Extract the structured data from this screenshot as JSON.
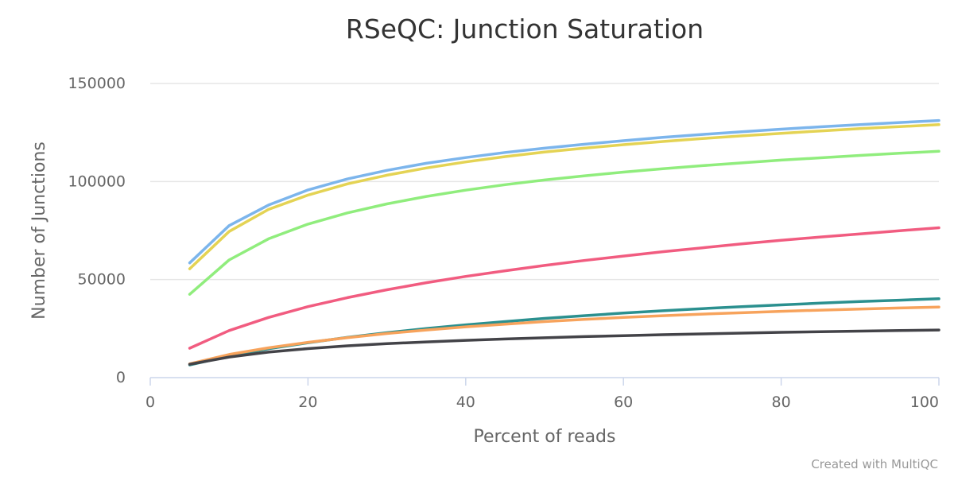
{
  "chart_data": {
    "type": "line",
    "title": "RSeQC: Junction Saturation",
    "xlabel": "Percent of reads",
    "ylabel": "Number of Junctions",
    "xlim": [
      0,
      100
    ],
    "ylim": [
      0,
      150000
    ],
    "x_ticks": [
      "0",
      "20",
      "40",
      "60",
      "80",
      "100"
    ],
    "y_ticks": [
      "0",
      "50000",
      "100000",
      "150000"
    ],
    "grid": true,
    "x": [
      5,
      10,
      15,
      20,
      25,
      30,
      35,
      40,
      45,
      50,
      55,
      60,
      65,
      70,
      75,
      80,
      85,
      90,
      95,
      100
    ],
    "series": [
      {
        "color": "#7cb5ec",
        "values": [
          58500,
          77500,
          88000,
          95700,
          101300,
          105700,
          109300,
          112200,
          114800,
          117000,
          119000,
          120800,
          122500,
          124000,
          125400,
          126700,
          127900,
          129000,
          130100,
          131100
        ]
      },
      {
        "color": "#e4d354",
        "values": [
          55500,
          74500,
          85800,
          93100,
          98800,
          103200,
          106900,
          110000,
          112700,
          115000,
          117000,
          118800,
          120400,
          121900,
          123300,
          124600,
          125800,
          127000,
          128000,
          129000
        ]
      },
      {
        "color": "#90ed7d",
        "values": [
          42500,
          60000,
          70800,
          78300,
          84000,
          88600,
          92400,
          95600,
          98400,
          100800,
          102900,
          104800,
          106500,
          108100,
          109500,
          110900,
          112100,
          113300,
          114400,
          115400
        ]
      },
      {
        "color": "#f15c80",
        "values": [
          15000,
          24000,
          30700,
          36200,
          40800,
          44800,
          48400,
          51600,
          54500,
          57200,
          59700,
          62000,
          64200,
          66200,
          68200,
          70000,
          71700,
          73300,
          74900,
          76400
        ]
      },
      {
        "color": "#2b908f",
        "values": [
          6500,
          11000,
          14700,
          17800,
          20500,
          22900,
          25000,
          26900,
          28600,
          30200,
          31600,
          32900,
          34100,
          35200,
          36200,
          37100,
          38000,
          38800,
          39500,
          40200
        ]
      },
      {
        "color": "#f7a35c",
        "values": [
          7000,
          11800,
          15200,
          18000,
          20400,
          22500,
          24300,
          25900,
          27300,
          28600,
          29700,
          30700,
          31600,
          32400,
          33100,
          33800,
          34400,
          35000,
          35500,
          36000
        ]
      },
      {
        "color": "#434348",
        "values": [
          6800,
          10500,
          13000,
          14800,
          16200,
          17300,
          18200,
          19000,
          19700,
          20300,
          20900,
          21400,
          21900,
          22300,
          22700,
          23100,
          23400,
          23700,
          24000,
          24300
        ]
      }
    ]
  },
  "credit": "Created with MultiQC"
}
